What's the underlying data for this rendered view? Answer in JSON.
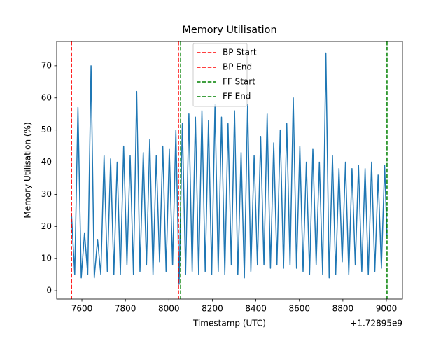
{
  "chart_data": {
    "type": "line",
    "title": "Memory Utilisation",
    "x_label": "Timestamp (UTC)",
    "y_label": "Memory Utilisation (%)",
    "x_offset_label": "+1.72895e9",
    "x": [
      7552,
      7567,
      7582,
      7597,
      7612,
      7627,
      7642,
      7657,
      7672,
      7687,
      7702,
      7717,
      7732,
      7747,
      7762,
      7777,
      7792,
      7807,
      7822,
      7837,
      7852,
      7867,
      7882,
      7897,
      7912,
      7927,
      7942,
      7957,
      7972,
      7987,
      8002,
      8017,
      8032,
      8047,
      8062,
      8077,
      8092,
      8107,
      8122,
      8137,
      8152,
      8167,
      8182,
      8197,
      8212,
      8227,
      8242,
      8257,
      8272,
      8287,
      8302,
      8317,
      8332,
      8347,
      8362,
      8377,
      8392,
      8407,
      8422,
      8437,
      8452,
      8467,
      8482,
      8497,
      8512,
      8527,
      8542,
      8557,
      8572,
      8587,
      8602,
      8617,
      8632,
      8647,
      8662,
      8677,
      8692,
      8707,
      8722,
      8737,
      8752,
      8767,
      8782,
      8797,
      8812,
      8827,
      8842,
      8857,
      8872,
      8887,
      8902,
      8917,
      8932,
      8947,
      8962,
      8977,
      8992,
      9003
    ],
    "series": [
      {
        "color": "#1f77b4",
        "values": [
          24,
          5,
          57,
          4,
          18,
          5,
          70,
          4,
          16,
          5,
          42,
          6,
          41,
          5,
          40,
          5,
          45,
          8,
          42,
          5,
          62,
          6,
          43,
          8,
          47,
          5,
          42,
          9,
          45,
          6,
          44,
          8,
          50,
          2,
          52,
          5,
          55,
          6,
          54,
          5,
          56,
          6,
          53,
          5,
          58,
          6,
          54,
          5,
          52,
          8,
          56,
          5,
          43,
          4,
          58,
          6,
          42,
          8,
          48,
          8,
          55,
          7,
          46,
          8,
          50,
          7,
          52,
          8,
          60,
          7,
          45,
          6,
          40,
          5,
          44,
          8,
          40,
          5,
          74,
          4,
          42,
          5,
          38,
          9,
          40,
          5,
          38,
          8,
          39,
          6,
          38,
          5,
          40,
          6,
          36,
          7,
          39,
          17
        ]
      }
    ],
    "vlines": [
      {
        "name": "BP Start",
        "x": 7552,
        "color": "#ff0000"
      },
      {
        "name": "BP End",
        "x": 8044,
        "color": "#ff0000"
      },
      {
        "name": "FF Start",
        "x": 8054,
        "color": "#008000"
      },
      {
        "name": "FF End",
        "x": 9003,
        "color": "#008000"
      }
    ],
    "xlim": [
      7484,
      9074
    ],
    "xticks": [
      7600,
      7800,
      8000,
      8200,
      8400,
      8600,
      8800,
      9000
    ],
    "ylim": [
      -2.6,
      77.6
    ],
    "yticks": [
      0,
      10,
      20,
      30,
      40,
      50,
      60,
      70
    ],
    "legend": "upper center"
  }
}
